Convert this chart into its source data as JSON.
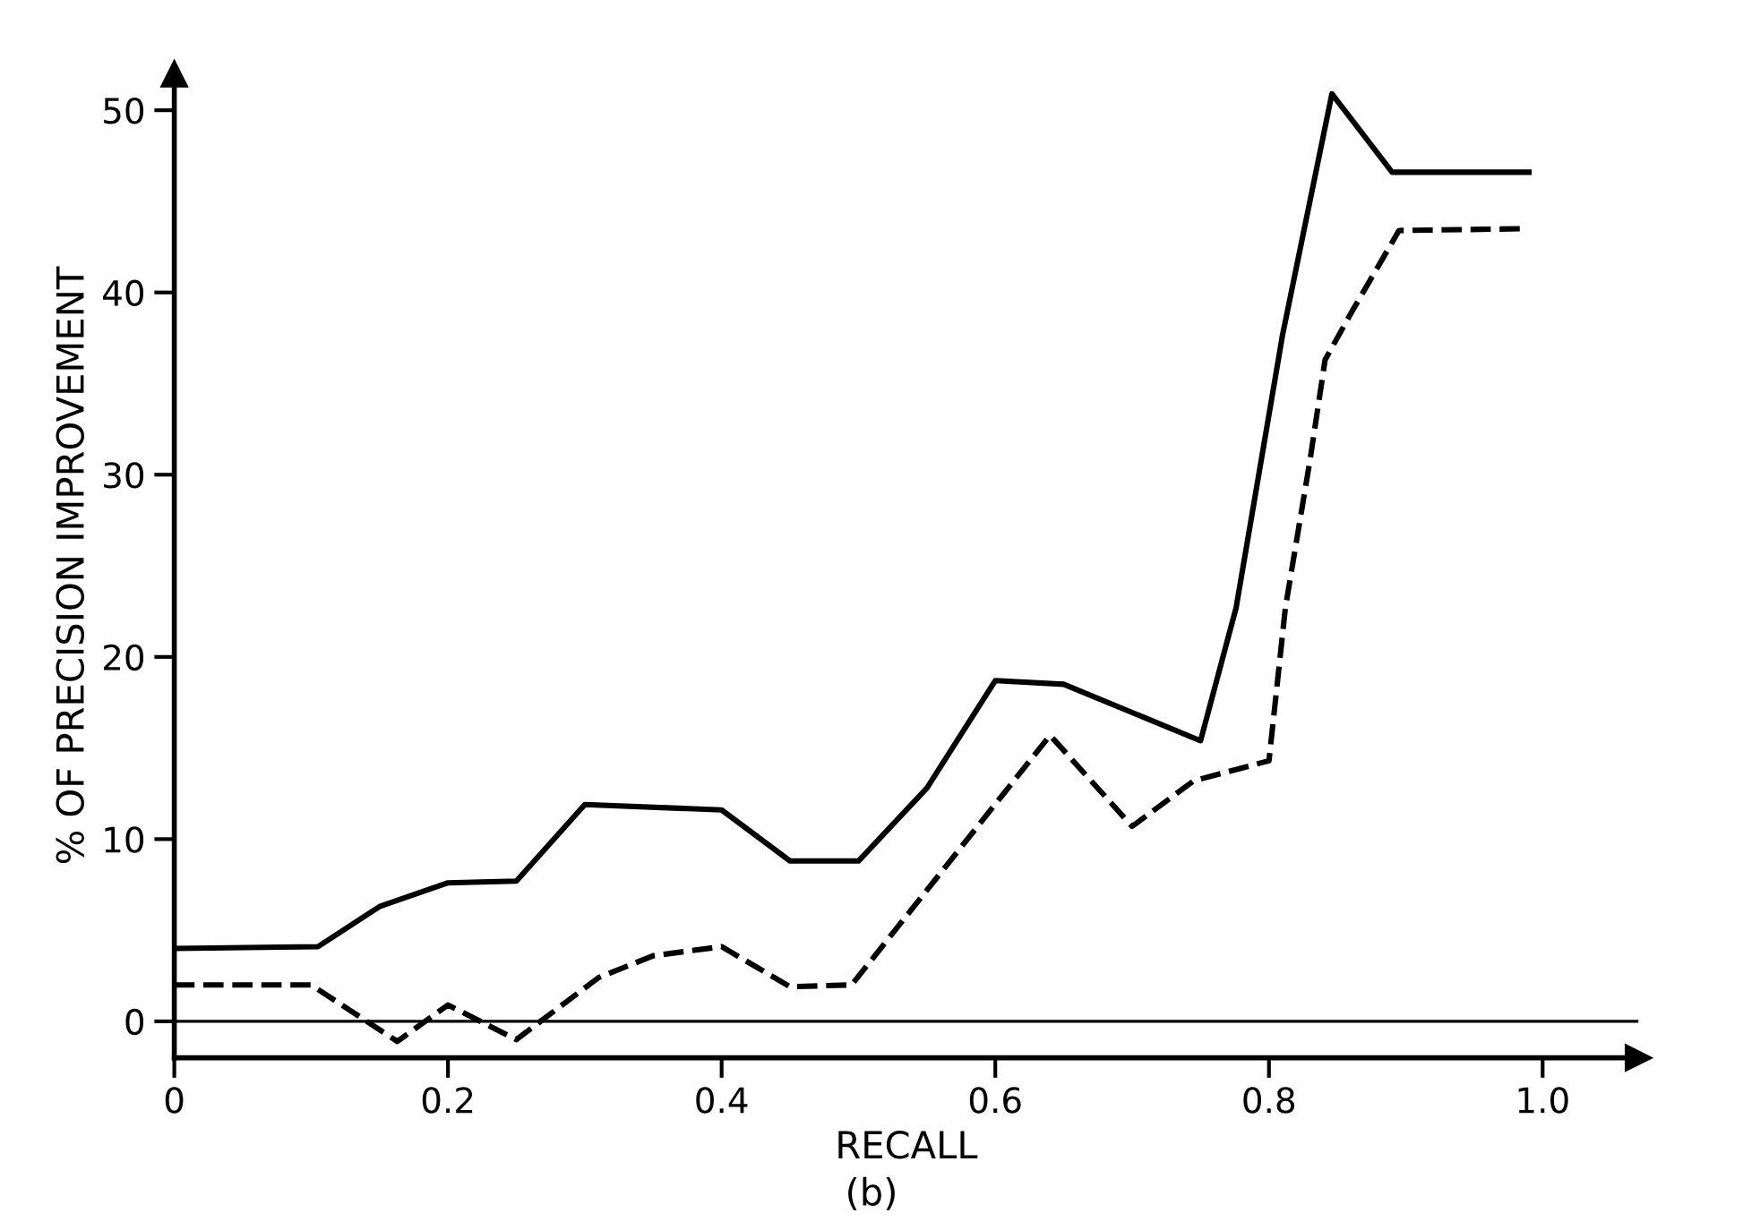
{
  "chart_data": {
    "type": "line",
    "xlabel": "RECALL",
    "ylabel": "% OF PRECISION IMPROVEMENT",
    "annotations": [
      "(b)"
    ],
    "xlim": [
      0,
      1.07
    ],
    "ylim": [
      -2,
      52
    ],
    "xticks": [
      0,
      0.2,
      0.4,
      0.6,
      0.8,
      {
        "value": 1,
        "label": "1.0"
      }
    ],
    "yticks": [
      0,
      10,
      20,
      30,
      40,
      50
    ],
    "grid": false,
    "legend": false,
    "ref_lines": [
      {
        "axis": "y",
        "value": 0,
        "color": "#000000",
        "line_style": "solid"
      }
    ],
    "series": [
      {
        "color": "#000000",
        "line_style": "solid",
        "x": [
          0,
          0.105,
          0.15,
          0.2,
          0.25,
          0.3,
          0.4,
          0.45,
          0.5,
          0.55,
          0.6,
          0.65,
          0.75,
          0.776,
          0.81,
          0.846,
          0.89,
          0.99
        ],
        "values": [
          4,
          4.1,
          6.3,
          7.6,
          7.7,
          11.9,
          11.6,
          8.8,
          8.8,
          12.8,
          18.7,
          18.5,
          15.4,
          22.7,
          37.7,
          50.9,
          46.6,
          46.6
        ]
      },
      {
        "color": "#000000",
        "line_style": "dashed",
        "x": [
          0,
          0.1,
          0.163,
          0.2,
          0.25,
          0.31,
          0.35,
          0.4,
          0.45,
          0.495,
          0.64,
          0.7,
          0.745,
          0.8,
          0.812,
          0.83,
          0.841,
          0.861,
          0.895,
          0.988
        ],
        "values": [
          2,
          2,
          -1.1,
          0.9,
          -1,
          2.4,
          3.6,
          4.1,
          1.9,
          2,
          15.7,
          10.7,
          13.2,
          14.3,
          22.7,
          30.8,
          36.3,
          39,
          43.4,
          43.5
        ]
      }
    ]
  }
}
